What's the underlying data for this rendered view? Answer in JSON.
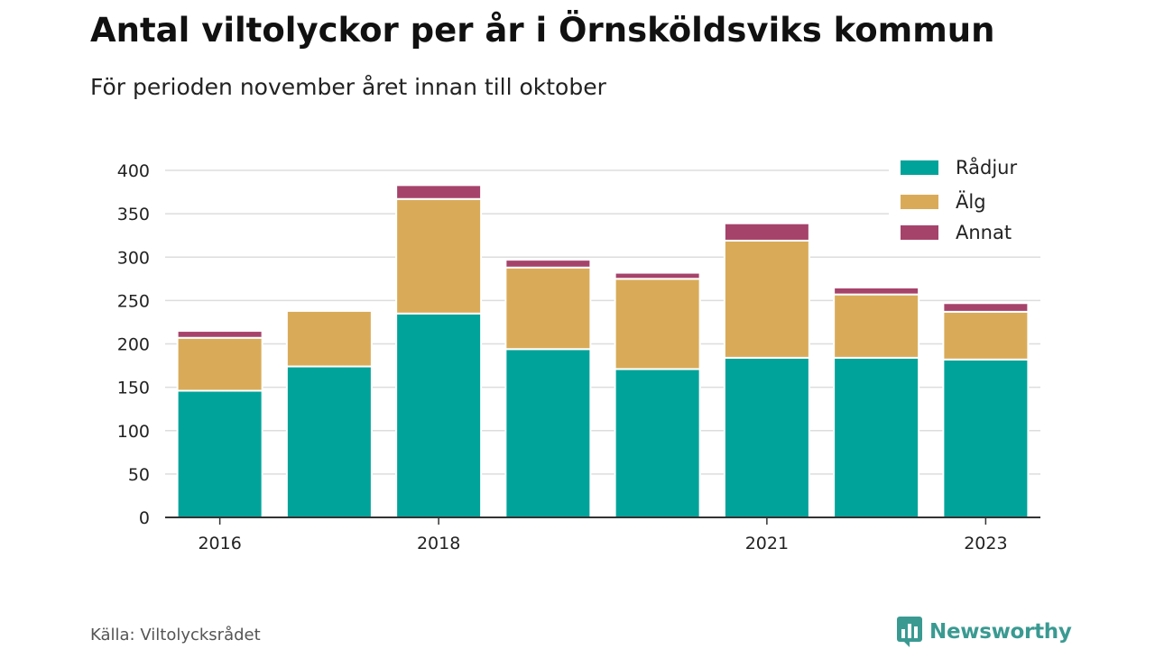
{
  "header": {
    "title": "Antal viltolyckor per år i Örnsköldsviks kommun",
    "subtitle": "För perioden november året innan till oktober"
  },
  "footer": {
    "source": "Källa: Viltolycksrådet",
    "brand": "Newsworthy",
    "brand_icon": "bar-chart-badge-icon"
  },
  "colors": {
    "radjur": "#00a39a",
    "alg": "#d9ab59",
    "annat": "#a6436b",
    "grid": "#dddddd",
    "axis": "#333333",
    "brand": "#3a9a92"
  },
  "chart_data": {
    "type": "bar",
    "stacked": true,
    "categories": [
      "2016",
      "2017",
      "2018",
      "2019",
      "2020",
      "2021",
      "2022",
      "2023"
    ],
    "x_tick_labels": [
      "2016",
      "",
      "2018",
      "",
      "",
      "2021",
      "",
      "2023"
    ],
    "series": [
      {
        "name": "Rådjur",
        "color": "#00a39a",
        "values": [
          146,
          174,
          235,
          194,
          171,
          184,
          184,
          182
        ]
      },
      {
        "name": "Älg",
        "color": "#d9ab59",
        "values": [
          61,
          64,
          132,
          94,
          104,
          135,
          73,
          55
        ]
      },
      {
        "name": "Annat",
        "color": "#a6436b",
        "values": [
          8,
          0,
          16,
          9,
          7,
          20,
          8,
          10
        ]
      }
    ],
    "ylim": [
      0,
      400
    ],
    "y_ticks": [
      0,
      50,
      100,
      150,
      200,
      250,
      300,
      350,
      400
    ],
    "grid": true,
    "legend_position": "top-right"
  }
}
